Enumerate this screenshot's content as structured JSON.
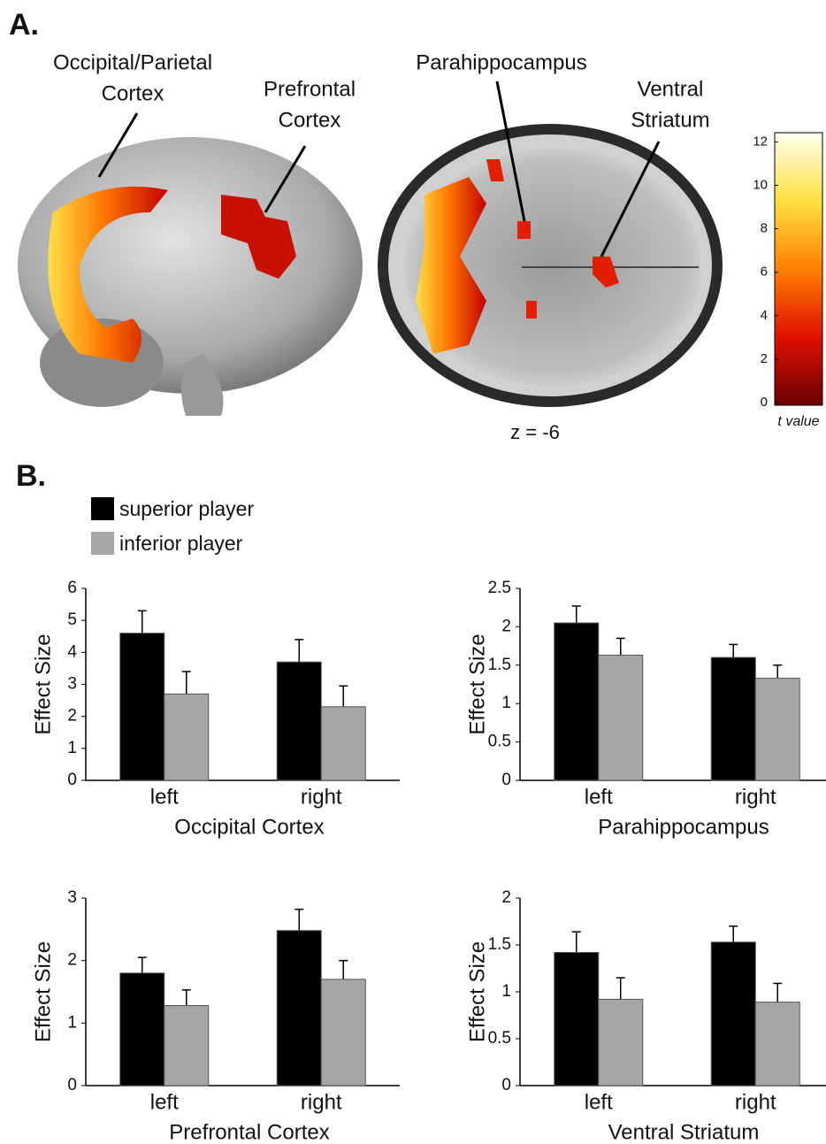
{
  "figure": {
    "panel_a": "A.",
    "panel_b": "B.",
    "brain_labels": [
      [
        "Occipital/Parietal",
        "Cortex"
      ],
      [
        "Prefrontal",
        "Cortex"
      ],
      [
        "Parahippocampus"
      ],
      [
        "Ventral",
        "Striatum"
      ]
    ],
    "slice_label": "z = -6",
    "colorbar": {
      "label": "t value",
      "lim": [
        0,
        12.3
      ],
      "ticks": [
        0,
        2,
        4,
        6,
        8,
        10,
        12
      ]
    }
  },
  "chart_data": [
    {
      "type": "bar",
      "categories": [
        "left",
        "right"
      ],
      "xlabel": "Occipital Cortex",
      "ylabel": "Effect Size",
      "ylim": [
        0,
        6
      ],
      "yticks": [
        0,
        1,
        2,
        3,
        4,
        5,
        6
      ],
      "series": [
        {
          "name": "superior player",
          "color": "#000000",
          "values": [
            4.6,
            3.7
          ],
          "errors": [
            0.7,
            0.7
          ]
        },
        {
          "name": "inferior player",
          "color": "#a6a6a6",
          "values": [
            2.7,
            2.3
          ],
          "errors": [
            0.7,
            0.65
          ]
        }
      ]
    },
    {
      "type": "bar",
      "categories": [
        "left",
        "right"
      ],
      "xlabel": "Parahippocampus",
      "ylabel": "Effect Size",
      "ylim": [
        0,
        2.5
      ],
      "yticks": [
        0,
        0.5,
        1,
        1.5,
        2,
        2.5
      ],
      "series": [
        {
          "color": "#000000",
          "values": [
            2.05,
            1.6
          ],
          "errors": [
            0.22,
            0.17
          ]
        },
        {
          "color": "#a6a6a6",
          "values": [
            1.63,
            1.33
          ],
          "errors": [
            0.22,
            0.17
          ]
        }
      ]
    },
    {
      "type": "bar",
      "categories": [
        "left",
        "right"
      ],
      "xlabel": "Prefrontal Cortex",
      "ylabel": "Effect Size",
      "ylim": [
        0,
        3
      ],
      "yticks": [
        0,
        1,
        2,
        3
      ],
      "series": [
        {
          "color": "#000000",
          "values": [
            1.8,
            2.48
          ],
          "errors": [
            0.25,
            0.34
          ]
        },
        {
          "color": "#a6a6a6",
          "values": [
            1.28,
            1.7
          ],
          "errors": [
            0.25,
            0.3
          ]
        }
      ]
    },
    {
      "type": "bar",
      "categories": [
        "left",
        "right"
      ],
      "xlabel": "Ventral Striatum",
      "ylabel": "Effect Size",
      "ylim": [
        0,
        2
      ],
      "yticks": [
        0,
        0.5,
        1,
        1.5,
        2
      ],
      "series": [
        {
          "color": "#000000",
          "values": [
            1.42,
            1.53
          ],
          "errors": [
            0.22,
            0.17
          ]
        },
        {
          "color": "#a6a6a6",
          "values": [
            0.92,
            0.89
          ],
          "errors": [
            0.23,
            0.2
          ]
        }
      ]
    }
  ]
}
